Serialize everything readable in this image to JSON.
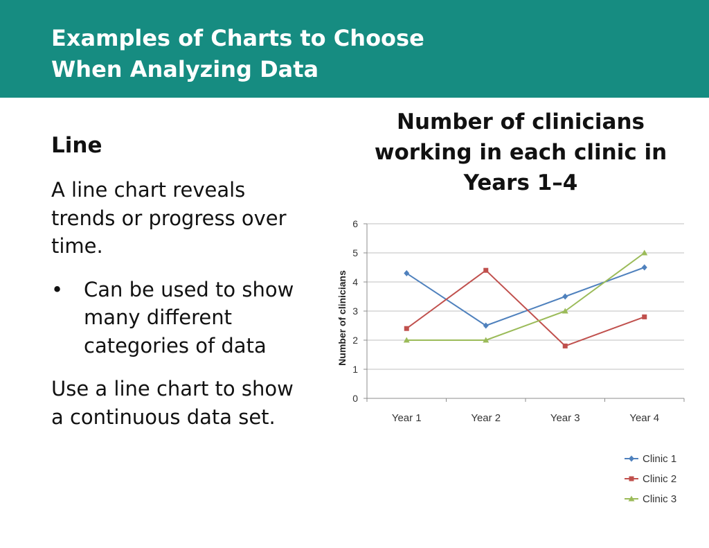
{
  "header": {
    "title_line1": "Examples of Charts to Choose",
    "title_line2": "When Analyzing Data",
    "background": "#168c81"
  },
  "left": {
    "heading": "Line",
    "paragraph1": "A line chart reveals trends or progress over time.",
    "bullet_symbol": "•",
    "bullet1": "Can be used to show many different categories of data",
    "paragraph2": "Use a line chart to show a continuous data set."
  },
  "chart_title": {
    "line1": "Number of clinicians",
    "line2": "working in each clinic in",
    "line3": "Years 1–4"
  },
  "chart_data": {
    "type": "line",
    "title": "Number of clinicians working in each clinic in Years 1–4",
    "xlabel": "",
    "ylabel": "Number of clinicians",
    "categories": [
      "Year 1",
      "Year 2",
      "Year 3",
      "Year 4"
    ],
    "ylim": [
      0,
      6
    ],
    "yticks": [
      0,
      1,
      2,
      3,
      4,
      5,
      6
    ],
    "grid": true,
    "legend": "bottom-right",
    "series": [
      {
        "name": "Clinic 1",
        "values": [
          4.3,
          2.5,
          3.5,
          4.5
        ],
        "color": "#4f81bd",
        "marker": "diamond"
      },
      {
        "name": "Clinic 2",
        "values": [
          2.4,
          4.4,
          1.8,
          2.8
        ],
        "color": "#c0504d",
        "marker": "square"
      },
      {
        "name": "Clinic 3",
        "values": [
          2.0,
          2.0,
          3.0,
          5.0
        ],
        "color": "#9bbb59",
        "marker": "triangle"
      }
    ]
  }
}
